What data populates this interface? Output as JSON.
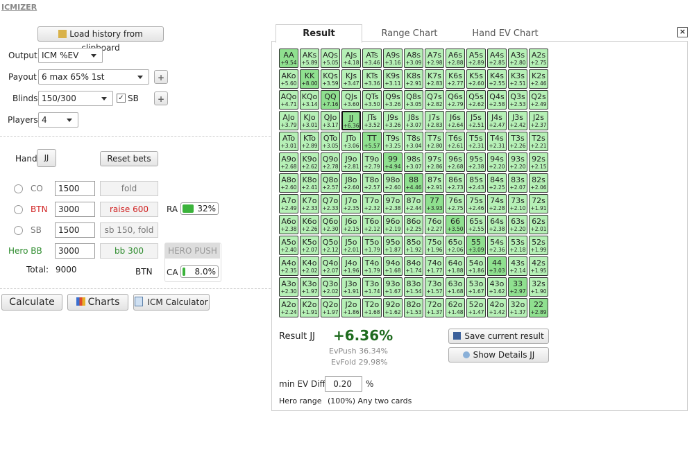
{
  "app_title": "ICMIZER",
  "left": {
    "load_button": "Load history from clipboard",
    "output": {
      "label": "Output",
      "value": "ICM %EV"
    },
    "payout": {
      "label": "Payout",
      "value": "6 max 65% 1st"
    },
    "blinds": {
      "label": "Blinds",
      "value": "150/300",
      "checkbox": "SB"
    },
    "players": {
      "label": "Players",
      "value": "4"
    },
    "hand": {
      "label": "Hand",
      "value": "JJ"
    },
    "reset": "Reset bets",
    "seats": [
      {
        "pos": "CO",
        "stack": "1500",
        "action": "fold"
      },
      {
        "pos": "BTN",
        "stack": "3000",
        "action": "raise 600"
      },
      {
        "pos": "SB",
        "stack": "1500",
        "action": "sb 150, fold"
      },
      {
        "pos": "Hero BB",
        "stack": "3000",
        "action": "bb 300"
      }
    ],
    "ra": {
      "label": "RA",
      "value": "32%"
    },
    "hero_push": "HERO PUSH",
    "total": {
      "label": "Total:",
      "value": "9000"
    },
    "btn_label": "BTN",
    "ca": {
      "label": "CA",
      "value": "8.0%"
    },
    "buttons": [
      "Calculate",
      "Charts",
      "ICM Calculator"
    ]
  },
  "tabs": [
    "Result",
    "Range Chart",
    "Hand EV Chart"
  ],
  "grid": [
    [
      [
        "AA",
        "+9.54"
      ],
      [
        "AKs",
        "+5.89"
      ],
      [
        "AQs",
        "+5.05"
      ],
      [
        "AJs",
        "+4.18"
      ],
      [
        "ATs",
        "+3.46"
      ],
      [
        "A9s",
        "+3.16"
      ],
      [
        "A8s",
        "+3.09"
      ],
      [
        "A7s",
        "+2.98"
      ],
      [
        "A6s",
        "+2.88"
      ],
      [
        "A5s",
        "+2.89"
      ],
      [
        "A4s",
        "+2.85"
      ],
      [
        "A3s",
        "+2.80"
      ],
      [
        "A2s",
        "+2.75"
      ]
    ],
    [
      [
        "AKo",
        "+5.60"
      ],
      [
        "KK",
        "+8.00"
      ],
      [
        "KQs",
        "+3.59"
      ],
      [
        "KJs",
        "+3.47"
      ],
      [
        "KTs",
        "+3.36"
      ],
      [
        "K9s",
        "+3.11"
      ],
      [
        "K8s",
        "+2.91"
      ],
      [
        "K7s",
        "+2.83"
      ],
      [
        "K6s",
        "+2.77"
      ],
      [
        "K5s",
        "+2.60"
      ],
      [
        "K4s",
        "+2.55"
      ],
      [
        "K3s",
        "+2.51"
      ],
      [
        "K2s",
        "+2.46"
      ]
    ],
    [
      [
        "AQo",
        "+4.71"
      ],
      [
        "KQo",
        "+3.14"
      ],
      [
        "QQ",
        "+7.16"
      ],
      [
        "QJs",
        "+3.60"
      ],
      [
        "QTs",
        "+3.50"
      ],
      [
        "Q9s",
        "+3.26"
      ],
      [
        "Q8s",
        "+3.05"
      ],
      [
        "Q7s",
        "+2.82"
      ],
      [
        "Q6s",
        "+2.79"
      ],
      [
        "Q5s",
        "+2.62"
      ],
      [
        "Q4s",
        "+2.58"
      ],
      [
        "Q3s",
        "+2.53"
      ],
      [
        "Q2s",
        "+2.49"
      ]
    ],
    [
      [
        "AJo",
        "+3.79"
      ],
      [
        "KJo",
        "+3.01"
      ],
      [
        "QJo",
        "+3.17"
      ],
      [
        "JJ",
        "+6.36"
      ],
      [
        "JTs",
        "+3.52"
      ],
      [
        "J9s",
        "+3.26"
      ],
      [
        "J8s",
        "+3.07"
      ],
      [
        "J7s",
        "+2.83"
      ],
      [
        "J6s",
        "+2.64"
      ],
      [
        "J5s",
        "+2.51"
      ],
      [
        "J4s",
        "+2.47"
      ],
      [
        "J3s",
        "+2.42"
      ],
      [
        "J2s",
        "+2.37"
      ]
    ],
    [
      [
        "ATo",
        "+3.01"
      ],
      [
        "KTo",
        "+2.89"
      ],
      [
        "QTo",
        "+3.05"
      ],
      [
        "JTo",
        "+3.06"
      ],
      [
        "TT",
        "+5.57"
      ],
      [
        "T9s",
        "+3.25"
      ],
      [
        "T8s",
        "+3.04"
      ],
      [
        "T7s",
        "+2.80"
      ],
      [
        "T6s",
        "+2.61"
      ],
      [
        "T5s",
        "+2.31"
      ],
      [
        "T4s",
        "+2.31"
      ],
      [
        "T3s",
        "+2.26"
      ],
      [
        "T2s",
        "+2.21"
      ]
    ],
    [
      [
        "A9o",
        "+2.68"
      ],
      [
        "K9o",
        "+2.62"
      ],
      [
        "Q9o",
        "+2.78"
      ],
      [
        "J9o",
        "+2.81"
      ],
      [
        "T9o",
        "+2.79"
      ],
      [
        "99",
        "+4.94"
      ],
      [
        "98s",
        "+3.07"
      ],
      [
        "97s",
        "+2.86"
      ],
      [
        "96s",
        "+2.68"
      ],
      [
        "95s",
        "+2.38"
      ],
      [
        "94s",
        "+2.20"
      ],
      [
        "93s",
        "+2.20"
      ],
      [
        "92s",
        "+2.15"
      ]
    ],
    [
      [
        "A8o",
        "+2.60"
      ],
      [
        "K8o",
        "+2.41"
      ],
      [
        "Q8o",
        "+2.57"
      ],
      [
        "J8o",
        "+2.60"
      ],
      [
        "T8o",
        "+2.57"
      ],
      [
        "98o",
        "+2.60"
      ],
      [
        "88",
        "+4.46"
      ],
      [
        "87s",
        "+2.91"
      ],
      [
        "86s",
        "+2.73"
      ],
      [
        "85s",
        "+2.43"
      ],
      [
        "84s",
        "+2.25"
      ],
      [
        "83s",
        "+2.07"
      ],
      [
        "82s",
        "+2.06"
      ]
    ],
    [
      [
        "A7o",
        "+2.49"
      ],
      [
        "K7o",
        "+2.33"
      ],
      [
        "Q7o",
        "+2.33"
      ],
      [
        "J7o",
        "+2.35"
      ],
      [
        "T7o",
        "+2.32"
      ],
      [
        "97o",
        "+2.38"
      ],
      [
        "87o",
        "+2.44"
      ],
      [
        "77",
        "+3.93"
      ],
      [
        "76s",
        "+2.75"
      ],
      [
        "75s",
        "+2.46"
      ],
      [
        "74s",
        "+2.28"
      ],
      [
        "73s",
        "+2.10"
      ],
      [
        "72s",
        "+1.91"
      ]
    ],
    [
      [
        "A6o",
        "+2.38"
      ],
      [
        "K6o",
        "+2.26"
      ],
      [
        "Q6o",
        "+2.30"
      ],
      [
        "J6o",
        "+2.15"
      ],
      [
        "T6o",
        "+2.12"
      ],
      [
        "96o",
        "+2.19"
      ],
      [
        "86o",
        "+2.25"
      ],
      [
        "76o",
        "+2.27"
      ],
      [
        "66",
        "+3.50"
      ],
      [
        "65s",
        "+2.55"
      ],
      [
        "64s",
        "+2.38"
      ],
      [
        "63s",
        "+2.20"
      ],
      [
        "62s",
        "+2.01"
      ]
    ],
    [
      [
        "A5o",
        "+2.40"
      ],
      [
        "K5o",
        "+2.07"
      ],
      [
        "Q5o",
        "+2.12"
      ],
      [
        "J5o",
        "+2.01"
      ],
      [
        "T5o",
        "+1.79"
      ],
      [
        "95o",
        "+1.87"
      ],
      [
        "85o",
        "+1.92"
      ],
      [
        "75o",
        "+1.96"
      ],
      [
        "65o",
        "+2.06"
      ],
      [
        "55",
        "+3.09"
      ],
      [
        "54s",
        "+2.36"
      ],
      [
        "53s",
        "+2.18"
      ],
      [
        "52s",
        "+1.99"
      ]
    ],
    [
      [
        "A4o",
        "+2.35"
      ],
      [
        "K4o",
        "+2.02"
      ],
      [
        "Q4o",
        "+2.07"
      ],
      [
        "J4o",
        "+1.96"
      ],
      [
        "T4o",
        "+1.79"
      ],
      [
        "94o",
        "+1.68"
      ],
      [
        "84o",
        "+1.74"
      ],
      [
        "74o",
        "+1.77"
      ],
      [
        "64o",
        "+1.88"
      ],
      [
        "54o",
        "+1.86"
      ],
      [
        "44",
        "+3.03"
      ],
      [
        "43s",
        "+2.14"
      ],
      [
        "42s",
        "+1.95"
      ]
    ],
    [
      [
        "A3o",
        "+2.30"
      ],
      [
        "K3o",
        "+1.97"
      ],
      [
        "Q3o",
        "+2.02"
      ],
      [
        "J3o",
        "+1.91"
      ],
      [
        "T3o",
        "+1.74"
      ],
      [
        "93o",
        "+1.67"
      ],
      [
        "83o",
        "+1.54"
      ],
      [
        "73o",
        "+1.57"
      ],
      [
        "63o",
        "+1.68"
      ],
      [
        "53o",
        "+1.67"
      ],
      [
        "43o",
        "+1.62"
      ],
      [
        "33",
        "+2.97"
      ],
      [
        "32s",
        "+1.90"
      ]
    ],
    [
      [
        "A2o",
        "+2.24"
      ],
      [
        "K2o",
        "+1.91"
      ],
      [
        "Q2o",
        "+1.97"
      ],
      [
        "J2o",
        "+1.86"
      ],
      [
        "T2o",
        "+1.68"
      ],
      [
        "92o",
        "+1.62"
      ],
      [
        "82o",
        "+1.53"
      ],
      [
        "72o",
        "+1.37"
      ],
      [
        "62o",
        "+1.48"
      ],
      [
        "52o",
        "+1.47"
      ],
      [
        "42o",
        "+1.42"
      ],
      [
        "32o",
        "+1.37"
      ],
      [
        "22",
        "+2.89"
      ]
    ]
  ],
  "result": {
    "label": "Result",
    "hand": "JJ",
    "ev": "+6.36%",
    "ev_push": "EvPush 36.34%",
    "ev_fold": "EvFold 29.98%",
    "save": "Save current result",
    "details": "Show Details JJ",
    "min_ev_label": "min EV Diff",
    "min_ev_value": "0.20",
    "min_ev_unit": "%",
    "hero_range_label": "Hero range",
    "hero_range_value": "(100%) Any two cards"
  }
}
